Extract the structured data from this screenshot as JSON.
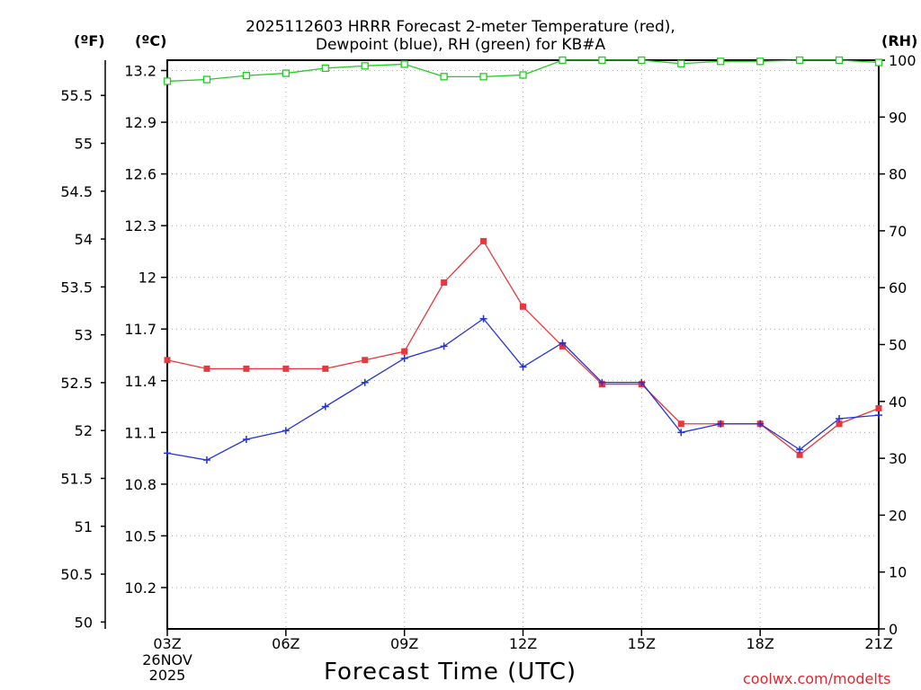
{
  "chart_data": {
    "type": "line",
    "title_line1": "2025112603 HRRR Forecast 2-meter Temperature (red),",
    "title_line2": "Dewpoint (blue), RH (green) for KB#A",
    "units": {
      "left_outer": "(ºF)",
      "left_inner": "(ºC)",
      "right": "(RH)"
    },
    "xlabel": "Forecast Time (UTC)",
    "credit": "coolwx.com/modelts",
    "x_hours": [
      0,
      1,
      2,
      3,
      4,
      5,
      6,
      7,
      8,
      9,
      10,
      11,
      12,
      13,
      14,
      15,
      16,
      17,
      18
    ],
    "x_ticks": [
      {
        "hour": 0,
        "label": "03Z",
        "sub": [
          "26NOV",
          "2025"
        ]
      },
      {
        "hour": 3,
        "label": "06Z"
      },
      {
        "hour": 6,
        "label": "09Z"
      },
      {
        "hour": 9,
        "label": "12Z"
      },
      {
        "hour": 12,
        "label": "15Z"
      },
      {
        "hour": 15,
        "label": "18Z"
      },
      {
        "hour": 18,
        "label": "21Z"
      }
    ],
    "c_ticks": [
      "10.2",
      "10.5",
      "10.8",
      "11.1",
      "11.4",
      "11.7",
      "12",
      "12.3",
      "12.6",
      "12.9",
      "13.2"
    ],
    "f_ticks": [
      "50",
      "50.5",
      "51",
      "51.5",
      "52",
      "52.5",
      "53",
      "53.5",
      "54",
      "54.5",
      "55",
      "55.5"
    ],
    "rh_ticks": [
      "0",
      "10",
      "20",
      "30",
      "40",
      "50",
      "60",
      "70",
      "80",
      "90",
      "100"
    ],
    "c_range": [
      9.96,
      13.26
    ],
    "rh_range": [
      0,
      100
    ],
    "series": [
      {
        "name": "Temperature",
        "unit": "C",
        "color": "#e8383d",
        "marker": "filled-square",
        "values": [
          11.52,
          11.47,
          11.47,
          11.47,
          11.47,
          11.52,
          11.57,
          11.97,
          12.21,
          11.83,
          11.6,
          11.38,
          11.38,
          11.15,
          11.15,
          11.15,
          10.97,
          11.15,
          11.24
        ]
      },
      {
        "name": "Dewpoint",
        "unit": "C",
        "color": "#2233dd",
        "marker": "plus",
        "values": [
          10.98,
          10.94,
          11.06,
          11.11,
          11.25,
          11.39,
          11.53,
          11.6,
          11.76,
          11.48,
          11.62,
          11.39,
          11.39,
          11.1,
          11.15,
          11.15,
          11.0,
          11.18,
          11.2
        ]
      },
      {
        "name": "RH",
        "unit": "%",
        "color": "#22cc22",
        "marker": "open-square",
        "values": [
          96.3,
          96.6,
          97.3,
          97.7,
          98.6,
          99.0,
          99.3,
          97.1,
          97.1,
          97.4,
          100.0,
          100.0,
          100.0,
          99.4,
          99.8,
          99.8,
          100.0,
          100.0,
          99.6
        ]
      }
    ]
  }
}
